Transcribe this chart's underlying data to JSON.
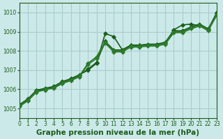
{
  "bg_color": "#cce9e9",
  "grid_color": "#aacccc",
  "line_color_main": "#1a5c1a",
  "line_color_light": "#2d7a2d",
  "xlabel": "Graphe pression niveau de la mer (hPa)",
  "xlim": [
    0,
    23
  ],
  "ylim": [
    1004.5,
    1010.5
  ],
  "yticks": [
    1005,
    1006,
    1007,
    1008,
    1009,
    1010
  ],
  "xticks": [
    0,
    1,
    2,
    3,
    4,
    5,
    6,
    7,
    8,
    9,
    10,
    11,
    12,
    13,
    14,
    15,
    16,
    17,
    18,
    19,
    20,
    21,
    22,
    23
  ],
  "series": [
    [
      1005.2,
      1005.4,
      1005.95,
      1006.0,
      1006.1,
      1006.3,
      1006.55,
      1006.75,
      1007.0,
      1007.35,
      1008.9,
      1008.75,
      1008.05,
      1008.3,
      1008.3,
      1008.3,
      1008.35,
      1008.4,
      1009.1,
      1009.35,
      1009.4,
      1009.3,
      1009.1,
      1010.0
    ],
    [
      1005.2,
      1005.5,
      1005.95,
      1006.05,
      1006.15,
      1006.4,
      1006.55,
      1006.75,
      1007.05,
      1007.4,
      1008.5,
      1008.05,
      1008.05,
      1008.3,
      1008.3,
      1008.35,
      1008.35,
      1008.45,
      1009.05,
      1009.05,
      1009.25,
      1009.4,
      1009.15,
      1009.95
    ],
    [
      1005.15,
      1005.45,
      1005.9,
      1005.95,
      1006.1,
      1006.35,
      1006.5,
      1006.7,
      1007.35,
      1007.7,
      1008.45,
      1008.0,
      1008.0,
      1008.25,
      1008.25,
      1008.3,
      1008.3,
      1008.4,
      1009.0,
      1009.0,
      1009.2,
      1009.35,
      1009.1,
      1009.9
    ],
    [
      1005.1,
      1005.4,
      1005.85,
      1006.0,
      1006.05,
      1006.3,
      1006.45,
      1006.65,
      1007.3,
      1007.6,
      1008.4,
      1007.95,
      1007.95,
      1008.2,
      1008.2,
      1008.25,
      1008.25,
      1008.35,
      1008.95,
      1008.95,
      1009.15,
      1009.3,
      1009.05,
      1009.85
    ]
  ],
  "marker": "D",
  "markersize": 3,
  "linewidth": 1.2,
  "label_fontsize": 7.5,
  "colors": [
    "#1a5c1a",
    "#1a5c1a",
    "#2d7a2d",
    "#2d7a2d"
  ]
}
